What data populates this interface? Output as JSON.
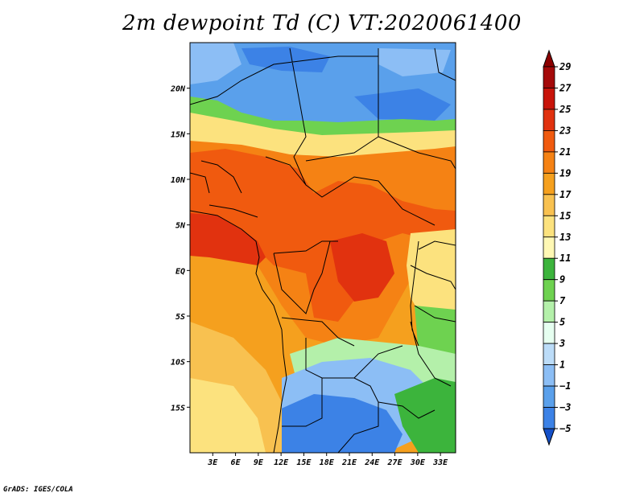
{
  "title": "2m dewpoint Td (C) VT:2020061400",
  "credit": "GrADS: IGES/COLA",
  "map": {
    "lat_range": [
      -20,
      25
    ],
    "lon_range": [
      0,
      35
    ],
    "lat_ticks": [
      {
        "value": 20,
        "label": "20N"
      },
      {
        "value": 15,
        "label": "15N"
      },
      {
        "value": 10,
        "label": "10N"
      },
      {
        "value": 5,
        "label": "5N"
      },
      {
        "value": 0,
        "label": "EQ"
      },
      {
        "value": -5,
        "label": "5S"
      },
      {
        "value": -10,
        "label": "10S"
      },
      {
        "value": -15,
        "label": "15S"
      }
    ],
    "lon_ticks": [
      {
        "value": 3,
        "label": "3E"
      },
      {
        "value": 6,
        "label": "6E"
      },
      {
        "value": 9,
        "label": "9E"
      },
      {
        "value": 12,
        "label": "12E"
      },
      {
        "value": 15,
        "label": "15E"
      },
      {
        "value": 18,
        "label": "18E"
      },
      {
        "value": 21,
        "label": "21E"
      },
      {
        "value": 24,
        "label": "24E"
      },
      {
        "value": 27,
        "label": "27E"
      },
      {
        "value": 30,
        "label": "30E"
      },
      {
        "value": 33,
        "label": "33E"
      }
    ]
  },
  "colorbar": {
    "levels": [
      {
        "label": "29",
        "color": "#a50a0a"
      },
      {
        "label": "27",
        "color": "#c8140a"
      },
      {
        "label": "25",
        "color": "#e1320f"
      },
      {
        "label": "23",
        "color": "#f05a0f"
      },
      {
        "label": "21",
        "color": "#f58214"
      },
      {
        "label": "19",
        "color": "#f5a01e"
      },
      {
        "label": "17",
        "color": "#f8c150"
      },
      {
        "label": "15",
        "color": "#fce27e"
      },
      {
        "label": "13",
        "color": "#fff8b4"
      },
      {
        "label": "11",
        "color": "#3cb43c"
      },
      {
        "label": "9",
        "color": "#6ed250"
      },
      {
        "label": "7",
        "color": "#b4f0aa"
      },
      {
        "label": "5",
        "color": "#e6fff0"
      },
      {
        "label": "3",
        "color": "#bcdcf8"
      },
      {
        "label": "1",
        "color": "#8cbef5"
      },
      {
        "label": "−1",
        "color": "#5aa0eb"
      },
      {
        "label": "−3",
        "color": "#3c82e6"
      },
      {
        "label": "−5",
        "color": "#1e64dc"
      }
    ],
    "below_color": "#1450c8",
    "above_color": "#8c0000"
  }
}
